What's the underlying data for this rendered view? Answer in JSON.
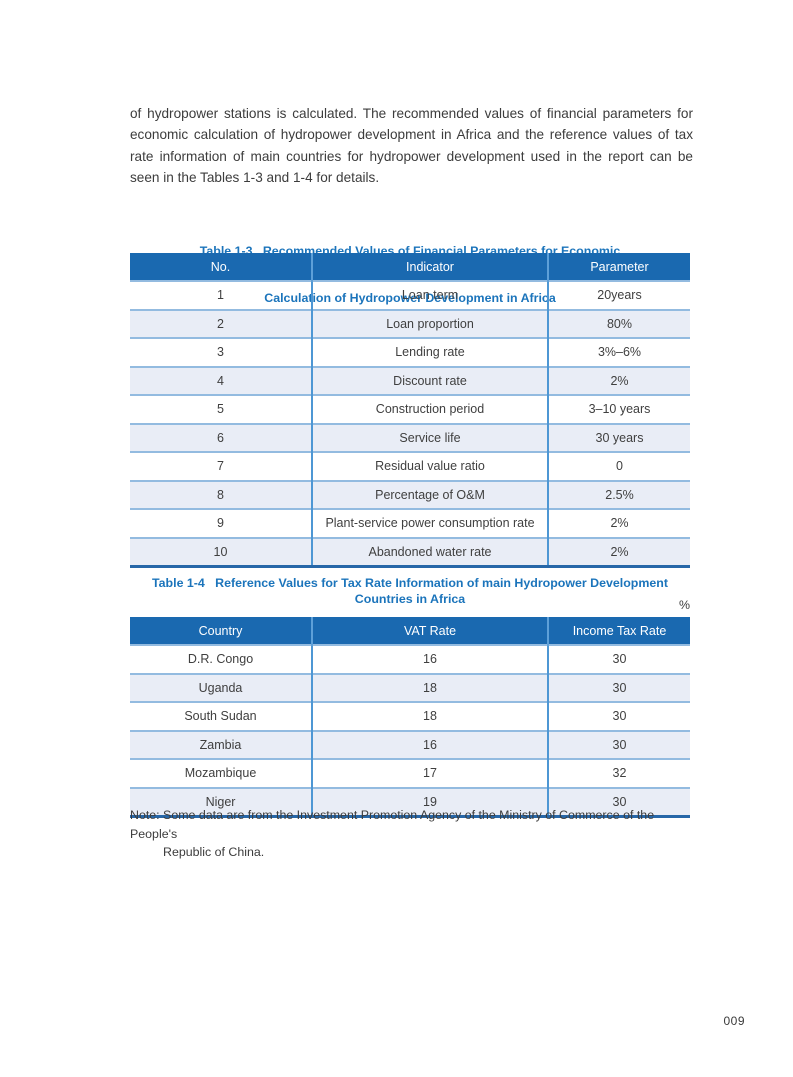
{
  "page": {
    "paragraph": "of hydropower stations is calculated. The recommended values of financial parameters for economic calculation of hydropower development in Africa and the reference values of tax rate information of main countries for hydropower development used in the report can be seen in the Tables 1-3 and 1-4 for details.",
    "note_line1": "Note: Some data are from the Investment Promotion Agency of the Ministry of Commerce of the People's",
    "note_line2": "Republic of China.",
    "page_number": "009"
  },
  "colors": {
    "header_bg": "#1A69B0",
    "alt_row_bg": "#E9EDF6",
    "title_blue": "#1B74BB",
    "divider_blue": "#4E97D4",
    "separator_light": "#93BBE0",
    "table_bottom": "#2767A8",
    "body_text": "#3C3C3C"
  },
  "table13": {
    "title_line1": "Table 1-3   Recommended Values of Financial Parameters for Economic",
    "title_line2": "Calculation of Hydropower Development in Africa",
    "headers": [
      "No.",
      "Indicator",
      "Parameter"
    ],
    "rows": [
      {
        "no": "1",
        "indicator": "Loan term",
        "parameter": "20years"
      },
      {
        "no": "2",
        "indicator": "Loan proportion",
        "parameter": "80%"
      },
      {
        "no": "3",
        "indicator": "Lending rate",
        "parameter": "3%–6%"
      },
      {
        "no": "4",
        "indicator": "Discount rate",
        "parameter": "2%"
      },
      {
        "no": "5",
        "indicator": "Construction period",
        "parameter": "3–10 years"
      },
      {
        "no": "6",
        "indicator": "Service life",
        "parameter": "30 years"
      },
      {
        "no": "7",
        "indicator": "Residual value ratio",
        "parameter": "0"
      },
      {
        "no": "8",
        "indicator": "Percentage of O&M",
        "parameter": "2.5%"
      },
      {
        "no": "9",
        "indicator": "Plant-service power consumption rate",
        "parameter": "2%"
      },
      {
        "no": "10",
        "indicator": "Abandoned water rate",
        "parameter": "2%"
      }
    ]
  },
  "table14": {
    "title": "Table 1-4   Reference Values for Tax Rate Information of main Hydropower Development Countries in Africa",
    "unit": "%",
    "headers": [
      "Country",
      "VAT Rate",
      "Income Tax Rate"
    ],
    "rows": [
      {
        "country": "D.R. Congo",
        "vat": "16",
        "income_tax": "30"
      },
      {
        "country": "Uganda",
        "vat": "18",
        "income_tax": "30"
      },
      {
        "country": "South Sudan",
        "vat": "18",
        "income_tax": "30"
      },
      {
        "country": "Zambia",
        "vat": "16",
        "income_tax": "30"
      },
      {
        "country": "Mozambique",
        "vat": "17",
        "income_tax": "32"
      },
      {
        "country": "Niger",
        "vat": "19",
        "income_tax": "30"
      }
    ]
  }
}
